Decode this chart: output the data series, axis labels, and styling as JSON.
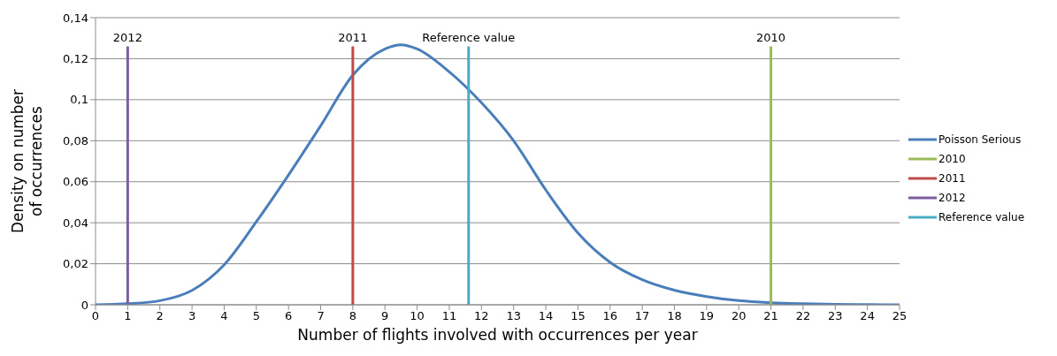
{
  "chart_data": {
    "type": "line",
    "xlabel": "Number of flights involved with occurrences per year",
    "ylabel": "Density on number of occurrences",
    "xlim": [
      0,
      25
    ],
    "xticks": [
      0,
      1,
      2,
      3,
      4,
      5,
      6,
      7,
      8,
      9,
      10,
      11,
      12,
      13,
      14,
      15,
      16,
      17,
      18,
      19,
      20,
      21,
      22,
      23,
      24,
      25
    ],
    "ylim": [
      0,
      0.14
    ],
    "yticks": [
      0,
      {
        "value": 0.02,
        "label": "0,02"
      },
      {
        "value": 0.04,
        "label": "0,04"
      },
      {
        "value": 0.06,
        "label": "0,06"
      },
      {
        "value": 0.08,
        "label": "0,08"
      },
      {
        "value": 0.1,
        "label": "0,1"
      },
      {
        "value": 0.12,
        "label": "0,12"
      },
      {
        "value": 0.14,
        "label": "0,14"
      }
    ],
    "grid": "y",
    "legend": "right",
    "marker": "none",
    "line_style": "solid",
    "series": [
      {
        "name": "Poisson Serious",
        "color": "#4a7ebb",
        "x": [
          0,
          1,
          2,
          3,
          4,
          5,
          6,
          7,
          8,
          9,
          9.5,
          10,
          11,
          12,
          13,
          14,
          15,
          16,
          17,
          18,
          19,
          20,
          21,
          22,
          23,
          24,
          25
        ],
        "values": [
          0,
          0.0005,
          0.002,
          0.007,
          0.0195,
          0.0405,
          0.0633,
          0.0873,
          0.112,
          0.1248,
          0.1268,
          0.1248,
          0.1136,
          0.0985,
          0.08,
          0.056,
          0.035,
          0.0207,
          0.0122,
          0.0071,
          0.004,
          0.002,
          0.001,
          0.0005,
          0.0002,
          0.0001,
          0
        ]
      },
      {
        "name": "2010",
        "color": "#9bbb59",
        "x": [
          21,
          21
        ],
        "values": [
          0,
          0.126
        ]
      },
      {
        "name": "2011",
        "color": "#be4b48",
        "x": [
          8,
          8
        ],
        "values": [
          0,
          0.126
        ]
      },
      {
        "name": "2012",
        "color": "#7d5fa0",
        "x": [
          1,
          1
        ],
        "values": [
          0,
          0.126
        ]
      },
      {
        "name": "Reference value",
        "color": "#4bacc6",
        "x": [
          11.6,
          11.6
        ],
        "values": [
          0,
          0.126
        ]
      }
    ]
  }
}
